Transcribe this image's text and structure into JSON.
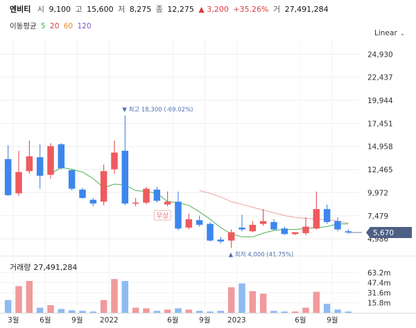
{
  "header": {
    "name": "엔비티",
    "open_label": "시",
    "open": "9,100",
    "high_label": "고",
    "high": "15,600",
    "low_label": "저",
    "low": "8,275",
    "close_label": "종",
    "close": "12,275",
    "change": "▲ 3,200",
    "change_pct": "+35.26%",
    "vol_label": "거",
    "volume": "27,491,284"
  },
  "moving_average": {
    "label": "이동평균",
    "periods": [
      {
        "label": "5",
        "color": "#3cb04a"
      },
      {
        "label": "20",
        "color": "#e0393e"
      },
      {
        "label": "60",
        "color": "#f08a24"
      },
      {
        "label": "120",
        "color": "#7b52d6"
      }
    ]
  },
  "scale_mode": "Linear",
  "volume_panel": {
    "label": "거래량",
    "value": "27,491,284"
  },
  "chart_data": {
    "type": "candlestick",
    "title": "엔비티",
    "y_ticks": [
      4986,
      7479,
      9972,
      12465,
      14958,
      17451,
      19944,
      22437,
      24930
    ],
    "y_tick_labels": [
      "4,986",
      "7,479",
      "9,972",
      "12,465",
      "14,958",
      "17,451",
      "19,944",
      "22,437",
      "24,930"
    ],
    "ylim": [
      3500,
      26300
    ],
    "current_price": 5670,
    "current_price_label": "5,670",
    "x_tick_labels": [
      {
        "label": "3월",
        "index": 1
      },
      {
        "label": "6월",
        "index": 4
      },
      {
        "label": "9월",
        "index": 7
      },
      {
        "label": "2022",
        "index": 10
      },
      {
        "label": "6월",
        "index": 16
      },
      {
        "label": "9월",
        "index": 19
      },
      {
        "label": "2023",
        "index": 22
      },
      {
        "label": "6월",
        "index": 28
      },
      {
        "label": "9월",
        "index": 31
      }
    ],
    "annotations": [
      {
        "text": "▼ 최고 18,300 (-69.02%)",
        "index": 11,
        "value": 18300,
        "kind": "high"
      },
      {
        "text": "▲ 최저 4,000 (41.75%)",
        "index": 21,
        "value": 4000,
        "kind": "low"
      },
      {
        "text": "무상",
        "index": 14,
        "value": 8200,
        "kind": "event"
      }
    ],
    "candles": [
      {
        "o": 13600,
        "h": 15100,
        "l": 9600,
        "c": 9700
      },
      {
        "o": 9900,
        "h": 14500,
        "l": 9600,
        "c": 12200
      },
      {
        "o": 12300,
        "h": 15600,
        "l": 12000,
        "c": 13900
      },
      {
        "o": 13800,
        "h": 15200,
        "l": 10400,
        "c": 11800
      },
      {
        "o": 11900,
        "h": 15300,
        "l": 11500,
        "c": 15000
      },
      {
        "o": 15200,
        "h": 15300,
        "l": 12500,
        "c": 12600
      },
      {
        "o": 12400,
        "h": 12500,
        "l": 10200,
        "c": 10400
      },
      {
        "o": 10300,
        "h": 10500,
        "l": 9300,
        "c": 9400
      },
      {
        "o": 9200,
        "h": 9400,
        "l": 8500,
        "c": 8800
      },
      {
        "o": 9000,
        "h": 13000,
        "l": 8600,
        "c": 12300
      },
      {
        "o": 12500,
        "h": 15600,
        "l": 12000,
        "c": 14300
      },
      {
        "o": 14500,
        "h": 18300,
        "l": 8600,
        "c": 8800
      },
      {
        "o": 8900,
        "h": 9400,
        "l": 8500,
        "c": 8900
      },
      {
        "o": 8900,
        "h": 10600,
        "l": 8700,
        "c": 10400
      },
      {
        "o": 10300,
        "h": 10600,
        "l": 8900,
        "c": 9100
      },
      {
        "o": 8700,
        "h": 10100,
        "l": 8500,
        "c": 9000
      },
      {
        "o": 9000,
        "h": 10100,
        "l": 5900,
        "c": 6100
      },
      {
        "o": 6200,
        "h": 7700,
        "l": 6000,
        "c": 7100
      },
      {
        "o": 7000,
        "h": 7500,
        "l": 6300,
        "c": 6500
      },
      {
        "o": 6600,
        "h": 6800,
        "l": 4700,
        "c": 4800
      },
      {
        "o": 4900,
        "h": 5200,
        "l": 4500,
        "c": 4700
      },
      {
        "o": 4800,
        "h": 6000,
        "l": 4000,
        "c": 5700
      },
      {
        "o": 6200,
        "h": 7600,
        "l": 5800,
        "c": 6000
      },
      {
        "o": 5800,
        "h": 6900,
        "l": 5700,
        "c": 6500
      },
      {
        "o": 6600,
        "h": 8200,
        "l": 6400,
        "c": 6900
      },
      {
        "o": 6800,
        "h": 7100,
        "l": 5900,
        "c": 6000
      },
      {
        "o": 6100,
        "h": 6300,
        "l": 5400,
        "c": 5500
      },
      {
        "o": 5500,
        "h": 5700,
        "l": 5400,
        "c": 5700
      },
      {
        "o": 5600,
        "h": 7300,
        "l": 5400,
        "c": 6300
      },
      {
        "o": 6100,
        "h": 10100,
        "l": 6000,
        "c": 8200
      },
      {
        "o": 8200,
        "h": 8700,
        "l": 6600,
        "c": 6800
      },
      {
        "o": 6900,
        "h": 7300,
        "l": 5800,
        "c": 6000
      },
      {
        "o": 5800,
        "h": 6000,
        "l": 5500,
        "c": 5670
      }
    ],
    "ma5": [
      null,
      null,
      null,
      null,
      12000,
      12700,
      12500,
      12200,
      11500,
      10500,
      10900,
      10800,
      10200,
      10100,
      9900,
      9000,
      8900,
      8600,
      7900,
      7100,
      6200,
      5500,
      5200,
      5200,
      5600,
      5900,
      6000,
      6000,
      6100,
      6200,
      6300,
      6600,
      6600
    ],
    "ma20": [
      null,
      null,
      null,
      null,
      null,
      null,
      null,
      null,
      null,
      null,
      null,
      null,
      null,
      null,
      null,
      null,
      null,
      null,
      10200,
      9900,
      9500,
      9000,
      8700,
      8400,
      8100,
      7800,
      7500,
      7300,
      7200,
      7100,
      7050,
      6900,
      6700
    ],
    "volume_ticks": [
      15.8,
      31.6,
      47.4,
      63.2
    ],
    "volume_tick_labels": [
      "15.8m",
      "31.6m",
      "47.4m",
      "63.2m"
    ],
    "volume_max": 75,
    "volumes": [
      20,
      42,
      50,
      8,
      12,
      6,
      4,
      3,
      2,
      20,
      53,
      50,
      8,
      7,
      3,
      5,
      7,
      5,
      3,
      2,
      3,
      40,
      46,
      34,
      30,
      3,
      2,
      2,
      8,
      33,
      14,
      5,
      2
    ]
  }
}
